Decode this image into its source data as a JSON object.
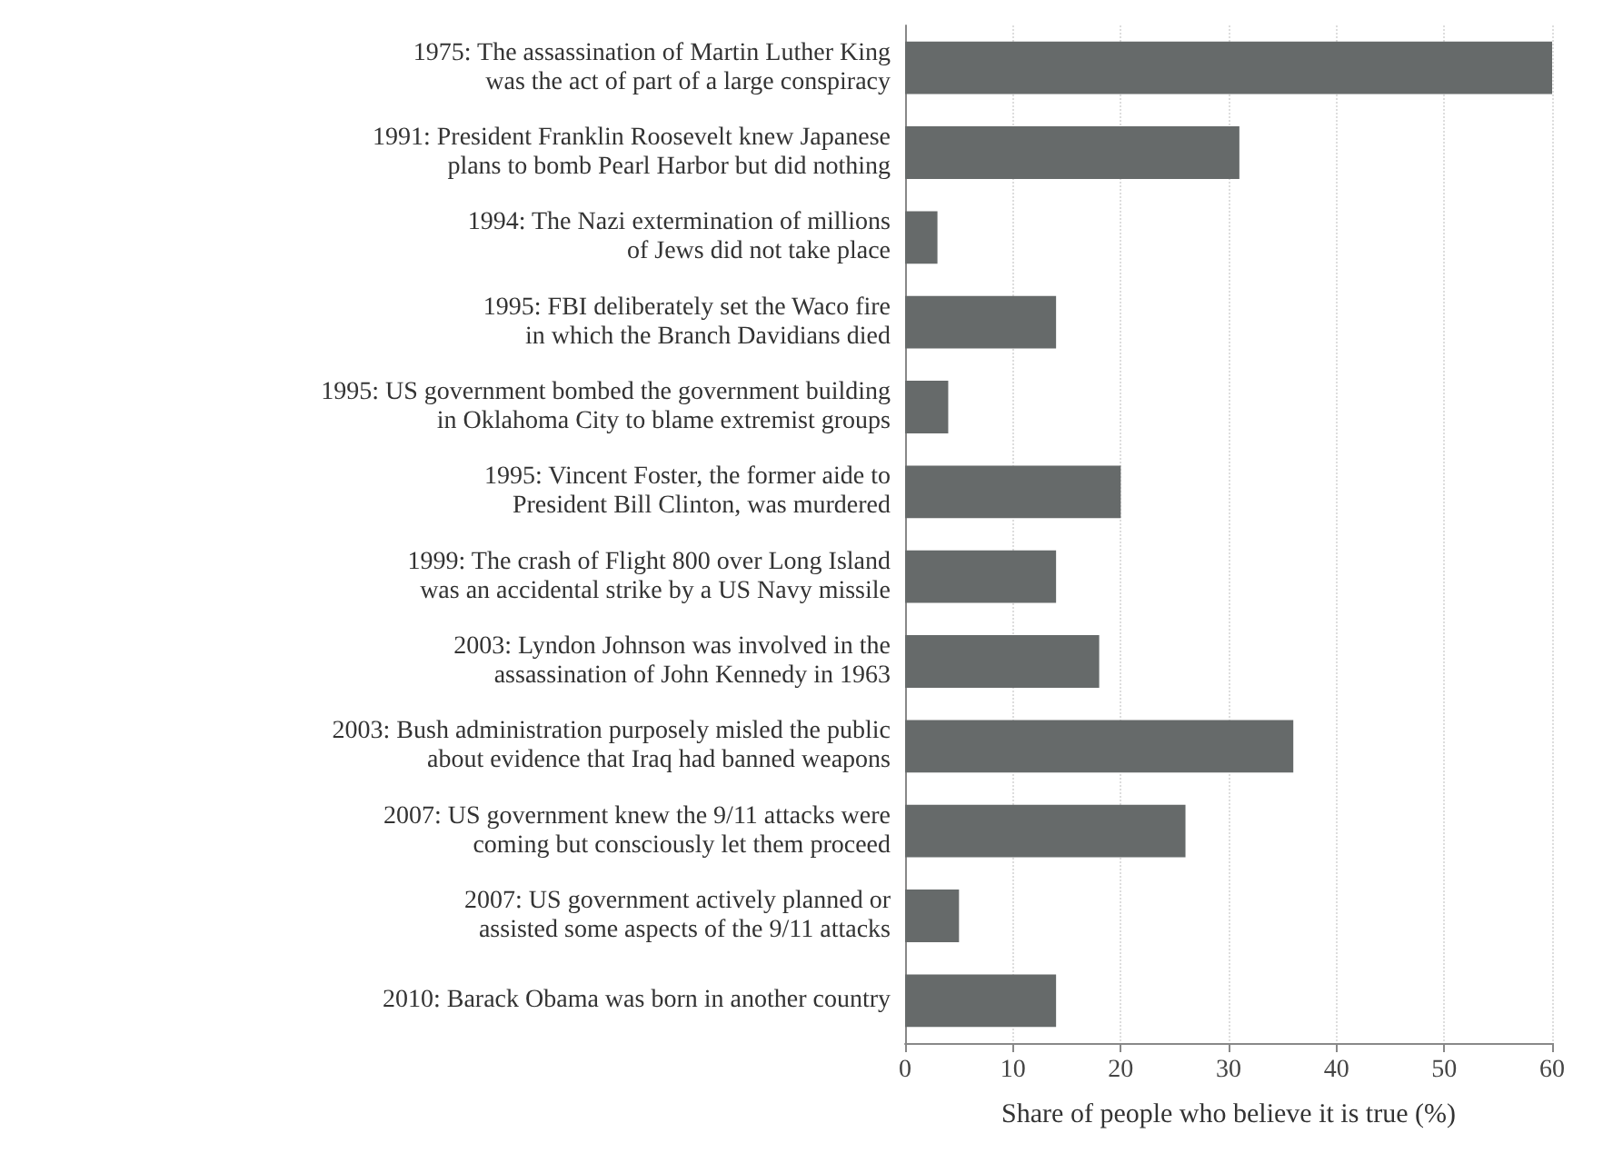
{
  "chart_data": {
    "type": "bar",
    "orientation": "horizontal",
    "xlabel": "Share of people who believe it is true (%)",
    "categories": [
      "1975: The assassination of Martin Luther King\nwas the act of part of a large conspiracy",
      "1991: President Franklin Roosevelt knew Japanese\nplans to bomb Pearl Harbor but did nothing",
      "1994: The Nazi extermination of millions\nof Jews did not take place",
      "1995: FBI deliberately set the Waco fire\nin which the Branch Davidians died",
      "1995: US government bombed the government building\nin Oklahoma City to blame extremist groups",
      "1995: Vincent Foster, the former aide to\nPresident Bill Clinton, was murdered",
      "1999: The crash of Flight 800 over Long Island\nwas an accidental strike by a US Navy missile",
      "2003: Lyndon Johnson was involved in the\nassassination of John Kennedy in 1963",
      "2003: Bush administration purposely misled the public\nabout evidence that Iraq had banned weapons",
      "2007: US government knew the 9/11 attacks were\ncoming but consciously let them proceed",
      "2007: US government actively planned or\nassisted some aspects of the 9/11 attacks",
      "2010: Barack Obama was born in another country"
    ],
    "values": [
      60,
      31,
      3,
      14,
      4,
      20,
      14,
      18,
      36,
      26,
      5,
      14
    ],
    "color": "#666a6a",
    "xlim": [
      0,
      60
    ],
    "xticks": [
      0,
      10,
      20,
      30,
      40,
      50,
      60
    ],
    "grid": "x"
  }
}
